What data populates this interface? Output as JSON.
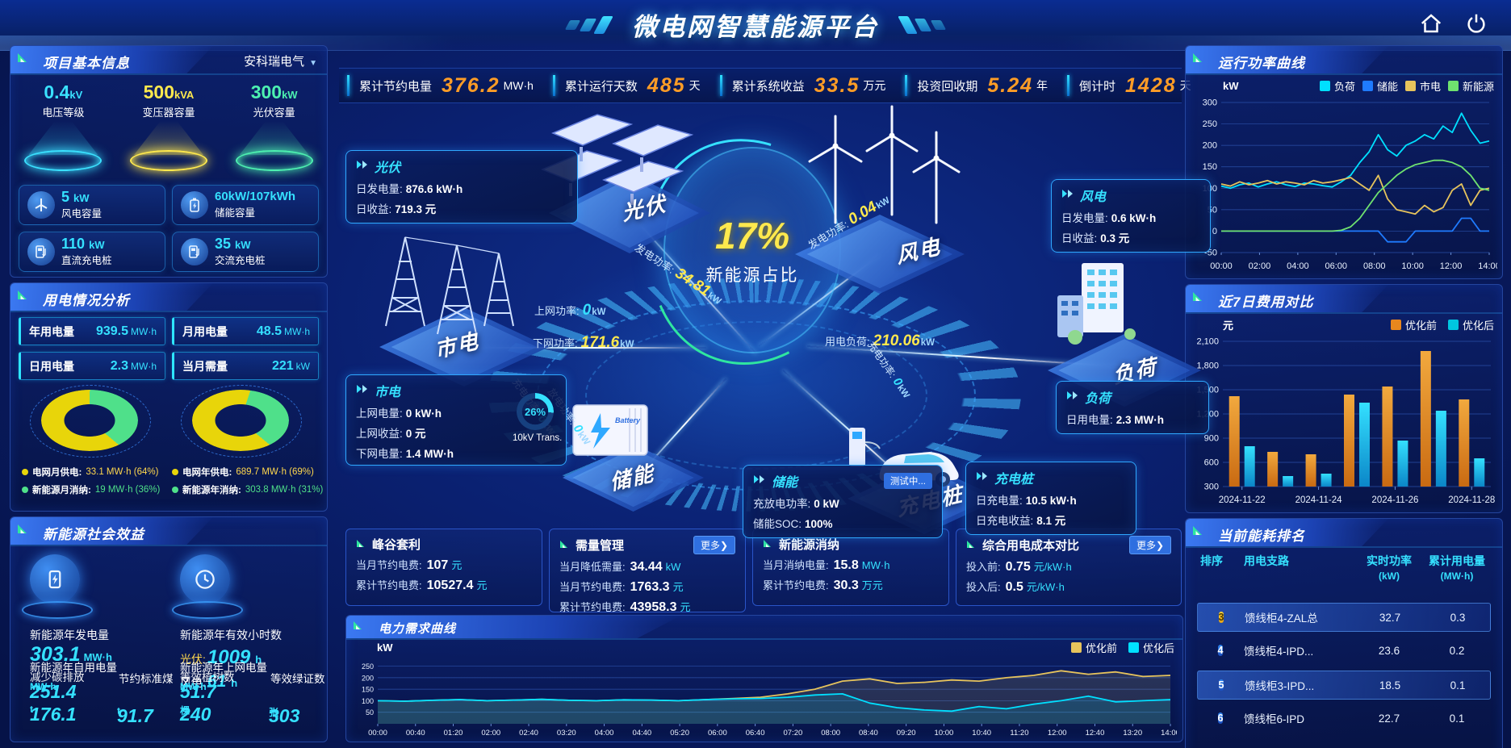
{
  "header": {
    "title": "微电网智慧能源平台"
  },
  "theme": {
    "accent": "#35e1ff",
    "orange": "#ff9d26",
    "yellow": "#ffe94d",
    "green": "#4fe08a"
  },
  "stats": [
    {
      "label": "累计节约电量",
      "value": "376.2",
      "unit": "MW·h"
    },
    {
      "label": "累计运行天数",
      "value": "485",
      "unit": "天"
    },
    {
      "label": "累计系统收益",
      "value": "33.5",
      "unit": "万元"
    },
    {
      "label": "投资回收期",
      "value": "5.24",
      "unit": "年"
    },
    {
      "label": "倒计时",
      "value": "1428",
      "unit": "天"
    }
  ],
  "project": {
    "title": "项目基本信息",
    "company": "安科瑞电气",
    "cones": [
      {
        "value": "0.4",
        "unit": "kV",
        "label": "电压等级",
        "color": "#3ae1ff"
      },
      {
        "value": "500",
        "unit": "kVA",
        "label": "变压器容量",
        "color": "#ffe94d"
      },
      {
        "value": "300",
        "unit": "kW",
        "label": "光伏容量",
        "color": "#4df0b0"
      }
    ],
    "cards": [
      {
        "value": "5",
        "unit": "kW",
        "label": "风电容量"
      },
      {
        "value": "60kW/107kWh",
        "unit": "",
        "label": "储能容量"
      },
      {
        "value": "110",
        "unit": "kW",
        "label": "直流充电桩"
      },
      {
        "value": "35",
        "unit": "kW",
        "label": "交流充电桩"
      }
    ]
  },
  "usage": {
    "title": "用电情况分析",
    "stats": [
      {
        "label": "年用电量",
        "value": "939.5",
        "unit": "MW·h"
      },
      {
        "label": "月用电量",
        "value": "48.5",
        "unit": "MW·h"
      },
      {
        "label": "日用电量",
        "value": "2.3",
        "unit": "MW·h"
      },
      {
        "label": "当月需量",
        "value": "221",
        "unit": "kW"
      }
    ],
    "legend_month": [
      {
        "label": "电网月供电:",
        "value": "33.1 MW·h (64%)"
      },
      {
        "label": "新能源月消纳:",
        "value": "19 MW·h (36%)"
      }
    ],
    "legend_year": [
      {
        "label": "电网年供电:",
        "value": "689.7 MW·h (69%)"
      },
      {
        "label": "新能源年消纳:",
        "value": "303.8 MW·h (31%)"
      }
    ]
  },
  "social": {
    "title": "新能源社会效益",
    "gen": {
      "label": "新能源年发电量",
      "value": "303.1",
      "unit": "MW·h"
    },
    "hours": {
      "label": "新能源年有效小时数",
      "pv_label": "光伏:",
      "pv_value": "1009",
      "pv_unit": "h",
      "wind_label": "风电:",
      "wind_value": "61",
      "wind_unit": "h"
    },
    "self_use": {
      "label": "新能源年自用电量",
      "value": "251.4",
      "unit": "MW·h"
    },
    "co2": {
      "label": "减少碳排放",
      "value": "176.1",
      "unit": "t"
    },
    "coal": {
      "label": "节约标准煤",
      "value": "91.7",
      "unit": "t"
    },
    "to_grid": {
      "label": "新能源年上网电量",
      "value": "51.7",
      "unit": "MW·h"
    },
    "trees": {
      "label": "等效植树数",
      "value": "240",
      "unit": "棵"
    },
    "certs": {
      "label": "等效绿证数",
      "value": "303",
      "unit": "张"
    }
  },
  "stage": {
    "circle_value": "17%",
    "circle_label": "新能源占比",
    "nodes": {
      "pv": "光伏",
      "wind": "风电",
      "grid": "市电",
      "load": "负荷",
      "storage": "储能",
      "charger": "充电桩"
    },
    "pv_card": {
      "title": "光伏",
      "rows": [
        {
          "label": "日发电量:",
          "value": "876.6 kW·h"
        },
        {
          "label": "日收益:",
          "value": "719.3 元"
        }
      ]
    },
    "wind_card": {
      "title": "风电",
      "rows": [
        {
          "label": "日发电量:",
          "value": "0.6 kW·h"
        },
        {
          "label": "日收益:",
          "value": "0.3 元"
        }
      ]
    },
    "grid_card": {
      "title": "市电",
      "rows": [
        {
          "label": "上网电量:",
          "value": "0 kW·h"
        },
        {
          "label": "上网收益:",
          "value": "0 元"
        },
        {
          "label": "下网电量:",
          "value": "1.4 MW·h"
        }
      ],
      "gauge": "26%",
      "gauge_label": "10kV Trans."
    },
    "load_card": {
      "title": "负荷",
      "rows": [
        {
          "label": "日用电量:",
          "value": "2.3 MW·h"
        }
      ]
    },
    "storage_card": {
      "title": "储能",
      "badge": "测试中...",
      "rows": [
        {
          "label": "充放电功率:",
          "value": "0 kW"
        },
        {
          "label": "储能SOC:",
          "value": "100%"
        }
      ]
    },
    "charger_card": {
      "title": "充电桩",
      "rows": [
        {
          "label": "日充电量:",
          "value": "10.5 kW·h"
        },
        {
          "label": "日充电收益:",
          "value": "8.1 元"
        }
      ]
    },
    "flows": {
      "pv_power": {
        "label": "发电功率:",
        "value": "34.81",
        "unit": "kW"
      },
      "wind_power": {
        "label": "发电功率:",
        "value": "0.04",
        "unit": "kW"
      },
      "grid_up": {
        "label": "上网功率:",
        "value": "0",
        "unit": "kW"
      },
      "grid_down": {
        "label": "下网功率:",
        "value": "171.6",
        "unit": "kW"
      },
      "load_power": {
        "label": "用电负荷:",
        "value": "210.06",
        "unit": "kW"
      },
      "charge_power": {
        "label": "充电功率:",
        "value": "0",
        "unit": "kW"
      },
      "discharge_power": {
        "label": "放电功率:",
        "value": "0",
        "unit": "kW"
      },
      "pile_power": {
        "label": "充电功率:",
        "value": "0",
        "unit": "kW"
      }
    }
  },
  "panels": [
    {
      "title": "峰谷套利",
      "rows": [
        {
          "label": "当月节约电费:",
          "value": "107",
          "unit": "元"
        },
        {
          "label": "累计节约电费:",
          "value": "10527.4",
          "unit": "元"
        }
      ]
    },
    {
      "title": "需量管理",
      "more": "更多❯",
      "rows": [
        {
          "label": "当月降低需量:",
          "value": "34.44",
          "unit": "kW"
        },
        {
          "label": "当月节约电费:",
          "value": "1763.3",
          "unit": "元"
        },
        {
          "label": "累计节约电费:",
          "value": "43958.3",
          "unit": "元"
        }
      ]
    },
    {
      "title": "新能源消纳",
      "rows": [
        {
          "label": "当月消纳电量:",
          "value": "15.8",
          "unit": "MW·h"
        },
        {
          "label": "累计节约电费:",
          "value": "30.3",
          "unit": "万元"
        }
      ]
    },
    {
      "title": "综合用电成本对比",
      "more": "更多❯",
      "rows": [
        {
          "label": "投入前:",
          "value": "0.75",
          "unit": "元/kW·h"
        },
        {
          "label": "投入后:",
          "value": "0.5",
          "unit": "元/kW·h"
        }
      ]
    }
  ],
  "charts_meta": {
    "power_title": "运行功率曲线",
    "cost_title": "近7日费用对比",
    "demand_title": "电力需求曲线",
    "ranking_title": "当前能耗排名"
  },
  "ranking": {
    "col_rank": "排序",
    "col_branch": "用电支路",
    "col_power": "实时功率",
    "col_power_sub": "(kW)",
    "col_energy": "累计用电量",
    "col_energy_sub": "(MW·h)",
    "rows": [
      {
        "rank": "3",
        "name": "馈线柜4-ZAL总",
        "power": "32.7",
        "energy": "0.3"
      },
      {
        "rank": "4",
        "name": "馈线柜4-IPD...",
        "power": "23.6",
        "energy": "0.2"
      },
      {
        "rank": "5",
        "name": "馈线柜3-IPD...",
        "power": "18.5",
        "energy": "0.1"
      },
      {
        "rank": "6",
        "name": "馈线柜6-IPD",
        "power": "22.7",
        "energy": "0.1"
      }
    ]
  },
  "chart_data": [
    {
      "id": "chart-power",
      "type": "line",
      "title": "运行功率曲线",
      "ylabel": "kW",
      "ylim": [
        -50,
        300
      ],
      "yticks": [
        300,
        250,
        200,
        150,
        100,
        50,
        0,
        -50
      ],
      "xticks": [
        "00:00",
        "02:00",
        "04:00",
        "06:00",
        "08:00",
        "10:00",
        "12:00",
        "14:00"
      ],
      "legend_position": "top",
      "grid": true,
      "series": [
        {
          "name": "负荷",
          "color": "#00e0ff",
          "values": [
            105,
            100,
            108,
            112,
            103,
            110,
            115,
            108,
            104,
            112,
            110,
            106,
            103,
            115,
            130,
            160,
            185,
            225,
            190,
            175,
            200,
            210,
            225,
            215,
            245,
            230,
            275,
            235,
            205,
            210
          ]
        },
        {
          "name": "储能",
          "color": "#1f7bff",
          "values": [
            0,
            0,
            0,
            0,
            0,
            0,
            0,
            0,
            0,
            0,
            0,
            0,
            0,
            0,
            0,
            0,
            0,
            0,
            -25,
            -25,
            -25,
            0,
            0,
            0,
            0,
            0,
            30,
            30,
            0,
            0
          ]
        },
        {
          "name": "市电",
          "color": "#e6c35c",
          "values": [
            110,
            105,
            115,
            108,
            112,
            118,
            110,
            115,
            112,
            108,
            118,
            112,
            115,
            120,
            125,
            110,
            95,
            130,
            75,
            50,
            45,
            40,
            60,
            45,
            55,
            95,
            110,
            60,
            95,
            100
          ]
        },
        {
          "name": "新能源",
          "color": "#6fe26f",
          "values": [
            0,
            0,
            0,
            0,
            0,
            0,
            0,
            0,
            0,
            0,
            0,
            0,
            0,
            2,
            10,
            30,
            60,
            90,
            110,
            130,
            145,
            155,
            160,
            165,
            165,
            160,
            150,
            130,
            100,
            95
          ]
        }
      ]
    },
    {
      "id": "chart-cost",
      "type": "bar",
      "title": "近7日费用对比",
      "ylabel": "元",
      "ylim": [
        300,
        2100
      ],
      "yticks": [
        "2,100",
        "1,800",
        "1,500",
        "1,200",
        "900",
        "600",
        "300"
      ],
      "categories": [
        "2024-11-22",
        "2024-11-23",
        "2024-11-24",
        "2024-11-25",
        "2024-11-26",
        "2024-11-27",
        "2024-11-28"
      ],
      "xticks": [
        "2024-11-22",
        "2024-11-24",
        "2024-11-26",
        "2024-11-28"
      ],
      "legend_position": "top",
      "grid": true,
      "series": [
        {
          "name": "优化前",
          "color": "#e8871e",
          "values": [
            1420,
            730,
            700,
            1440,
            1540,
            1980,
            1380
          ]
        },
        {
          "name": "优化后",
          "color": "#00c6e0",
          "values": [
            800,
            430,
            460,
            1340,
            870,
            1240,
            650
          ]
        }
      ]
    },
    {
      "id": "chart-demand",
      "type": "line",
      "title": "电力需求曲线",
      "ylabel": "kW",
      "ylim": [
        0,
        280
      ],
      "yticks": [
        250,
        200,
        150,
        100,
        50
      ],
      "xticks": [
        "00:00",
        "00:40",
        "01:20",
        "02:00",
        "02:40",
        "03:20",
        "04:00",
        "04:40",
        "05:20",
        "06:00",
        "06:40",
        "07:20",
        "08:00",
        "08:40",
        "09:20",
        "10:00",
        "10:40",
        "11:20",
        "12:00",
        "12:40",
        "13:20",
        "14:00"
      ],
      "legend_position": "top-right",
      "grid": true,
      "series": [
        {
          "name": "优化前",
          "color": "#e6c35c",
          "values": [
            100,
            98,
            102,
            105,
            100,
            103,
            106,
            102,
            100,
            104,
            103,
            100,
            105,
            110,
            115,
            130,
            150,
            185,
            195,
            175,
            180,
            190,
            185,
            200,
            210,
            230,
            215,
            225,
            205,
            210
          ]
        },
        {
          "name": "优化后",
          "color": "#00e0ff",
          "values": [
            100,
            98,
            102,
            105,
            100,
            103,
            106,
            102,
            100,
            104,
            103,
            100,
            105,
            108,
            110,
            115,
            125,
            130,
            90,
            70,
            60,
            55,
            75,
            65,
            85,
            100,
            120,
            95,
            100,
            105
          ]
        }
      ]
    },
    {
      "id": "donut-month",
      "type": "pie",
      "slices": [
        {
          "label": "电网月供电",
          "value_text": "33.1 MW·h",
          "pct": 64,
          "color": "#e8d50a"
        },
        {
          "label": "新能源月消纳",
          "value_text": "19 MW·h",
          "pct": 36,
          "color": "#4fe08a"
        }
      ]
    },
    {
      "id": "donut-year",
      "type": "pie",
      "slices": [
        {
          "label": "电网年供电",
          "value_text": "689.7 MW·h",
          "pct": 69,
          "color": "#e8d50a"
        },
        {
          "label": "新能源年消纳",
          "value_text": "303.8 MW·h",
          "pct": 31,
          "color": "#4fe08a"
        }
      ]
    }
  ]
}
